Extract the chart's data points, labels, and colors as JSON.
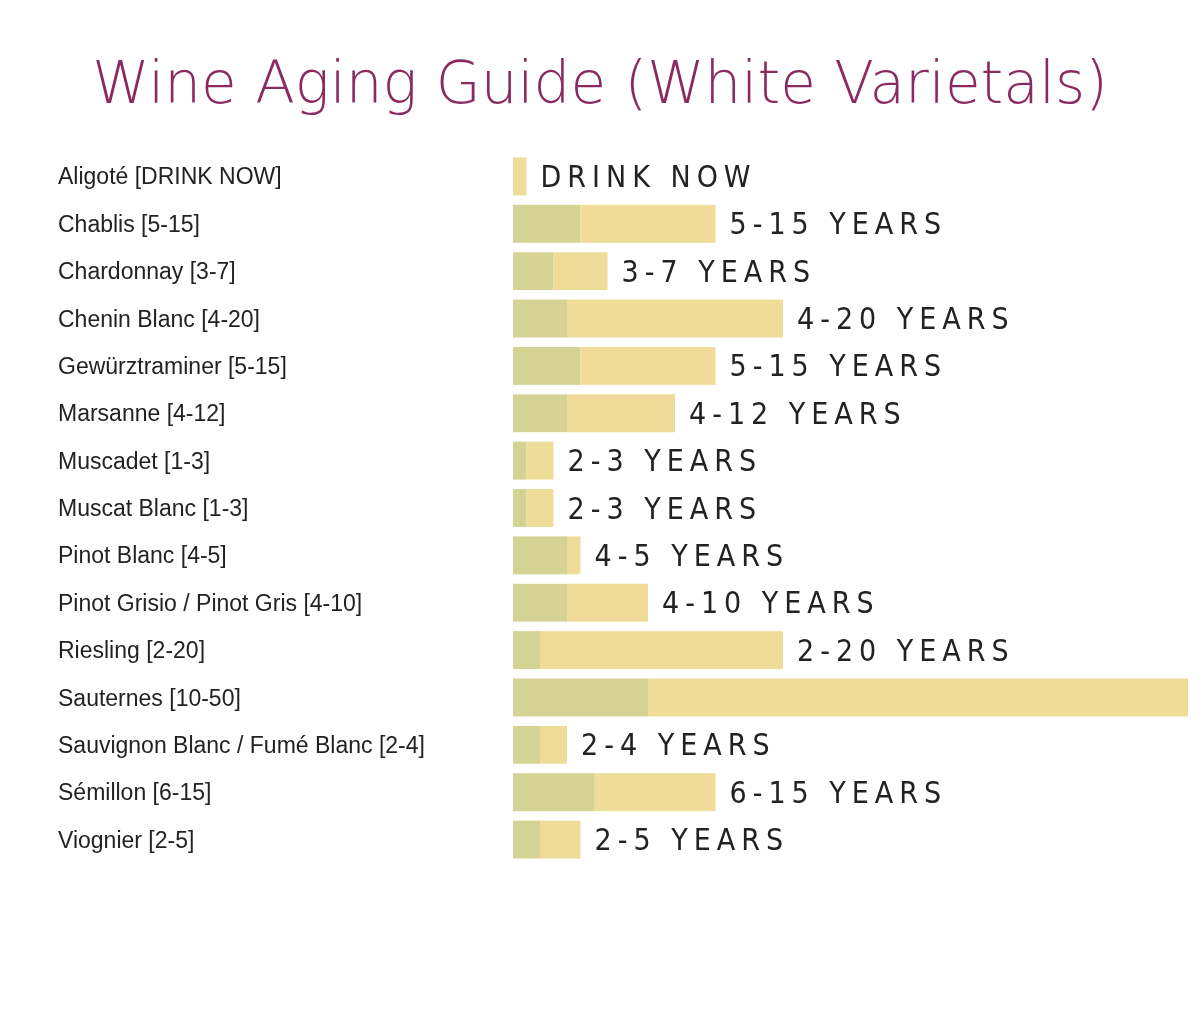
{
  "chart_data": {
    "type": "bar",
    "orientation": "horizontal",
    "stacked": true,
    "tick_labels": "y",
    "title": "Wine Aging Guide (White Varietals)",
    "categories": [
      "Aligoté [DRINK NOW]",
      "Chablis [5-15]",
      "Chardonnay [3-7]",
      "Chenin Blanc [4-20]",
      "Gewürztraminer [5-15]",
      "Marsanne [4-12]",
      "Muscadet [1-3]",
      "Muscat Blanc [1-3]",
      "Pinot Blanc [4-5]",
      "Pinot Grisio / Pinot Gris [4-10]",
      "Riesling [2-20]",
      "Sauternes [10-50]",
      "Sauvignon Blanc / Fumé Blanc [2-4]",
      "Sémillon [6-15]",
      "Viognier [2-5]"
    ],
    "series": [
      {
        "color": "#d4d394",
        "values": [
          0,
          5,
          3,
          4,
          5,
          4,
          1,
          1,
          4,
          4,
          2,
          10,
          2,
          6,
          2
        ]
      },
      {
        "color": "#efdc98",
        "values": [
          1,
          10,
          4,
          16,
          10,
          8,
          2,
          2,
          1,
          6,
          18,
          40,
          2,
          9,
          3
        ],
        "value_labels": [
          "DRINK NOW",
          "5-15 YEARS",
          "3-7 YEARS",
          "4-20 YEARS",
          "5-15 YEARS",
          "4-12 YEARS",
          "2-3 YEARS",
          "2-3 YEARS",
          "4-5 YEARS",
          "4-10 YEARS",
          "2-20 YEARS",
          null,
          "2-4 YEARS",
          "6-15 YEARS",
          "2-5 YEARS"
        ]
      }
    ]
  }
}
